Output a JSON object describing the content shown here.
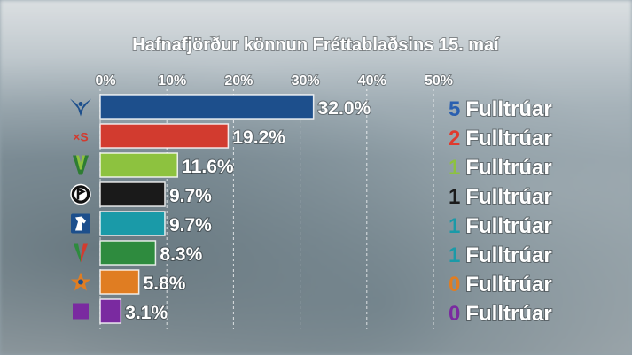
{
  "chart_data": {
    "type": "bar",
    "orientation": "horizontal",
    "title": "Hafnafjörður könnun Fréttablaðsins 15. maí",
    "x_ticks": [
      "0%",
      "10%",
      "20%",
      "30%",
      "40%",
      "50%"
    ],
    "xlim": [
      0,
      50
    ],
    "grid": "vertical dashed",
    "seat_suffix": "Fulltrúar",
    "bars": [
      {
        "value": 32.0,
        "label": "32.0%",
        "color": "#1d4f8c",
        "seats": 5,
        "seat_color": "#2a5fb0",
        "icon": "falcon-logo-icon"
      },
      {
        "value": 19.2,
        "label": "19.2%",
        "color": "#d23b2f",
        "seats": 2,
        "seat_color": "#e03a2e",
        "icon": "xs-logo-icon"
      },
      {
        "value": 11.6,
        "label": "11.6%",
        "color": "#8dc23f",
        "seats": 1,
        "seat_color": "#8dc23f",
        "icon": "green-v-logo-icon"
      },
      {
        "value": 9.7,
        "label": "9.7%",
        "color": "#1a1a1a",
        "seats": 1,
        "seat_color": "#1a1a1a",
        "icon": "pirate-flag-logo-icon"
      },
      {
        "value": 9.7,
        "label": "9.7%",
        "color": "#1a9aa8",
        "seats": 1,
        "seat_color": "#1a9aa8",
        "icon": "horse-logo-icon"
      },
      {
        "value": 8.3,
        "label": "8.3%",
        "color": "#2e8b3e",
        "seats": 1,
        "seat_color": "#1a9aa8",
        "icon": "red-green-v-logo-icon"
      },
      {
        "value": 5.8,
        "label": "5.8%",
        "color": "#e07d22",
        "seats": 0,
        "seat_color": "#e07d22",
        "icon": "star-logo-icon"
      },
      {
        "value": 3.1,
        "label": "3.1%",
        "color": "#7a2aa0",
        "seats": 0,
        "seat_color": "#7a2aa0",
        "icon": "purple-square-icon"
      }
    ]
  }
}
